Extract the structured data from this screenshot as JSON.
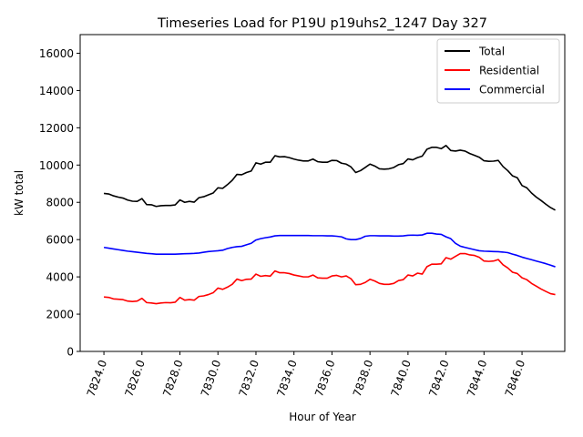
{
  "chart_data": {
    "type": "line",
    "title": "Timeseries Load for P19U p19uhs2_1247  Day 327",
    "xlabel": "Hour of Year",
    "ylabel": "kW total",
    "xlim": [
      7822.75,
      7848.25
    ],
    "ylim": [
      0,
      17000
    ],
    "xticks": [
      7824,
      7826,
      7828,
      7830,
      7832,
      7834,
      7836,
      7838,
      7840,
      7842,
      7844,
      7846
    ],
    "xtick_labels": [
      "7824.0",
      "7826.0",
      "7828.0",
      "7830.0",
      "7832.0",
      "7834.0",
      "7836.0",
      "7838.0",
      "7840.0",
      "7842.0",
      "7844.0",
      "7846.0"
    ],
    "yticks": [
      0,
      2000,
      4000,
      6000,
      8000,
      10000,
      12000,
      14000,
      16000
    ],
    "ytick_labels": [
      "0",
      "2000",
      "4000",
      "6000",
      "8000",
      "10000",
      "12000",
      "14000",
      "16000"
    ],
    "grid": false,
    "legend_position": "top-right",
    "x": [
      7824.0,
      7824.25,
      7824.5,
      7824.75,
      7825.0,
      7825.25,
      7825.5,
      7825.75,
      7826.0,
      7826.25,
      7826.5,
      7826.75,
      7827.0,
      7827.25,
      7827.5,
      7827.75,
      7828.0,
      7828.25,
      7828.5,
      7828.75,
      7829.0,
      7829.25,
      7829.5,
      7829.75,
      7830.0,
      7830.25,
      7830.5,
      7830.75,
      7831.0,
      7831.25,
      7831.5,
      7831.75,
      7832.0,
      7832.25,
      7832.5,
      7832.75,
      7833.0,
      7833.25,
      7833.5,
      7833.75,
      7834.0,
      7834.25,
      7834.5,
      7834.75,
      7835.0,
      7835.25,
      7835.5,
      7835.75,
      7836.0,
      7836.25,
      7836.5,
      7836.75,
      7837.0,
      7837.25,
      7837.5,
      7837.75,
      7838.0,
      7838.25,
      7838.5,
      7838.75,
      7839.0,
      7839.25,
      7839.5,
      7839.75,
      7840.0,
      7840.25,
      7840.5,
      7840.75,
      7841.0,
      7841.25,
      7841.5,
      7841.75,
      7842.0,
      7842.25,
      7842.5,
      7842.75,
      7843.0,
      7843.25,
      7843.5,
      7843.75,
      7844.0,
      7844.25,
      7844.5,
      7844.75,
      7845.0,
      7845.25,
      7845.5,
      7845.75,
      7846.0,
      7846.25,
      7846.5,
      7846.75,
      7847.0,
      7847.25,
      7847.5,
      7847.75
    ],
    "series": [
      {
        "name": "Total",
        "color": "#000000",
        "values": [
          8480,
          8450,
          8350,
          8280,
          8230,
          8120,
          8060,
          8050,
          8200,
          7880,
          7870,
          7780,
          7820,
          7830,
          7830,
          7860,
          8130,
          8000,
          8050,
          8010,
          8250,
          8300,
          8400,
          8500,
          8780,
          8750,
          8950,
          9180,
          9500,
          9480,
          9600,
          9680,
          10120,
          10050,
          10150,
          10150,
          10500,
          10440,
          10450,
          10400,
          10320,
          10260,
          10220,
          10220,
          10320,
          10180,
          10150,
          10150,
          10250,
          10240,
          10100,
          10050,
          9900,
          9600,
          9700,
          9870,
          10050,
          9950,
          9800,
          9780,
          9800,
          9870,
          10020,
          10080,
          10330,
          10280,
          10400,
          10480,
          10850,
          10950,
          10950,
          10880,
          11050,
          10780,
          10750,
          10800,
          10750,
          10620,
          10520,
          10420,
          10230,
          10200,
          10210,
          10250,
          9920,
          9700,
          9420,
          9320,
          8900,
          8780,
          8500,
          8280,
          8100,
          7900,
          7720,
          7580
        ]
      },
      {
        "name": "Residential",
        "color": "#ff0000",
        "values": [
          2920,
          2900,
          2820,
          2800,
          2780,
          2700,
          2680,
          2700,
          2850,
          2620,
          2600,
          2560,
          2600,
          2620,
          2610,
          2640,
          2900,
          2750,
          2780,
          2750,
          2950,
          2980,
          3050,
          3150,
          3400,
          3330,
          3450,
          3600,
          3880,
          3800,
          3870,
          3880,
          4150,
          4030,
          4070,
          4040,
          4320,
          4220,
          4220,
          4180,
          4100,
          4050,
          4000,
          4000,
          4100,
          3950,
          3930,
          3930,
          4050,
          4080,
          4000,
          4050,
          3900,
          3580,
          3600,
          3700,
          3870,
          3780,
          3650,
          3600,
          3600,
          3650,
          3800,
          3850,
          4100,
          4050,
          4200,
          4150,
          4550,
          4680,
          4680,
          4700,
          5030,
          4950,
          5100,
          5250,
          5250,
          5180,
          5150,
          5050,
          4850,
          4830,
          4850,
          4930,
          4650,
          4480,
          4250,
          4180,
          3950,
          3850,
          3650,
          3500,
          3350,
          3220,
          3100,
          3050
        ]
      },
      {
        "name": "Commercial",
        "color": "#0000ff",
        "values": [
          5580,
          5540,
          5500,
          5460,
          5420,
          5380,
          5350,
          5320,
          5290,
          5260,
          5240,
          5220,
          5220,
          5220,
          5220,
          5220,
          5230,
          5240,
          5250,
          5260,
          5280,
          5320,
          5360,
          5380,
          5400,
          5430,
          5520,
          5580,
          5620,
          5640,
          5720,
          5800,
          5980,
          6050,
          6100,
          6140,
          6200,
          6220,
          6220,
          6220,
          6220,
          6220,
          6220,
          6220,
          6210,
          6210,
          6210,
          6200,
          6200,
          6180,
          6150,
          6040,
          6000,
          6000,
          6060,
          6180,
          6210,
          6210,
          6200,
          6200,
          6200,
          6190,
          6190,
          6200,
          6230,
          6240,
          6230,
          6250,
          6340,
          6340,
          6300,
          6280,
          6150,
          6050,
          5800,
          5650,
          5580,
          5520,
          5460,
          5400,
          5380,
          5370,
          5360,
          5350,
          5330,
          5300,
          5220,
          5150,
          5060,
          4990,
          4920,
          4850,
          4780,
          4710,
          4630,
          4540
        ]
      }
    ]
  }
}
